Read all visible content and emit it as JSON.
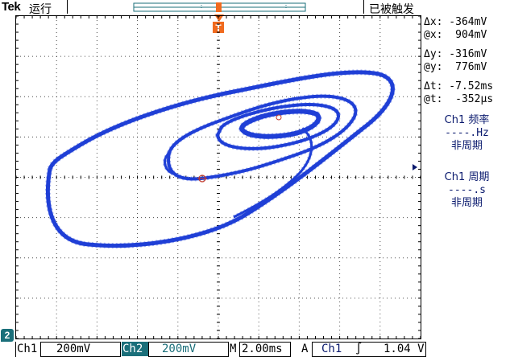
{
  "header": {
    "brand": "Tek",
    "run_state": "运行",
    "trigger_state": "已被触发",
    "trigger_marker": "T"
  },
  "cursor_readouts": {
    "dx": "Δx: -364mV",
    "at_x": "@x:  904mV",
    "dy": "Δy: -316mV",
    "at_y": "@y:  776mV",
    "dt": "Δt: -7.52ms",
    "at_t": "@t:  -352µs"
  },
  "measurements": [
    {
      "title": "Ch1 频率",
      "value": "----.Hz",
      "note": "非周期"
    },
    {
      "title": "Ch1 周期",
      "value": "----.s",
      "note": "非周期"
    }
  ],
  "bottom": {
    "ch1_label": "Ch1",
    "ch1_scale": "200mV",
    "ch2_label": "Ch2",
    "ch2_scale": "200mV",
    "timebase_label": "M",
    "timebase": "2.00ms",
    "acq_mode": "A",
    "trig_source": "Ch1",
    "trig_slope": "∫",
    "trig_level": "1.04 V"
  },
  "channel2_ground_marker": "2",
  "colors": {
    "trace": "#1f3fd6",
    "trigger_marker": "#f06a1e",
    "ch2_accent": "#1a6f7a",
    "cursor_marker": "#c43a2a"
  }
}
